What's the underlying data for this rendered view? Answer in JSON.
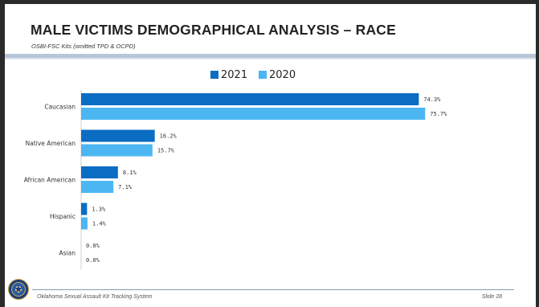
{
  "slide": {
    "title": "MALE VICTIMS DEMOGRAPHICAL ANALYSIS – RACE",
    "subtitle": "OSBI-FSC Kits (omitted TPD & OCPD)",
    "footer": "Oklahoma Sexual Assault Kit Tracking System",
    "slide_number": "Slide 28"
  },
  "chart_data": {
    "type": "bar",
    "orientation": "horizontal",
    "title": "",
    "xlabel": "",
    "ylabel": "",
    "categories": [
      "Caucasian",
      "Native American",
      "African American",
      "Hispanic",
      "Asian"
    ],
    "series": [
      {
        "name": "2021",
        "values": [
          74.3,
          16.2,
          8.1,
          1.3,
          0.0
        ],
        "labels": [
          "74.3%",
          "16.2%",
          "8.1%",
          "1.3%",
          "0.0%"
        ],
        "color": "#0b6cc4"
      },
      {
        "name": "2020",
        "values": [
          75.7,
          15.7,
          7.1,
          1.4,
          0.0
        ],
        "labels": [
          "75.7%",
          "15.7%",
          "7.1%",
          "1.4%",
          "0.0%"
        ],
        "color": "#4bb6f2"
      }
    ],
    "xlim": [
      0,
      76
    ],
    "grid": false,
    "legend": "top"
  }
}
